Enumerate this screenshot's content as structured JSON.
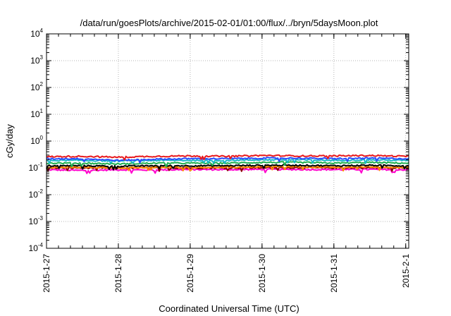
{
  "chart_data": {
    "type": "line",
    "title": "/data/run/goesPlots/archive/2015-02-01/01:00/flux/../bryn/5daysMoon.plot",
    "xlabel": "Coordinated Universal Time (UTC)",
    "ylabel": "cGy/day",
    "yscale": "log",
    "ylim": [
      0.0001,
      10000
    ],
    "xlim": [
      "2015-01-27",
      "2015-02-01 01:00"
    ],
    "grid": true,
    "legend": "none",
    "x_ticks": [
      "2015-1-27",
      "2015-1-28",
      "2015-1-29",
      "2015-1-30",
      "2015-1-31",
      "2015-2-1"
    ],
    "y_ticks": [
      {
        "base": "10",
        "exp": "-4"
      },
      {
        "base": "10",
        "exp": "-3"
      },
      {
        "base": "10",
        "exp": "-2"
      },
      {
        "base": "10",
        "exp": "-1"
      },
      {
        "base": "10",
        "exp": "0"
      },
      {
        "base": "10",
        "exp": "1"
      },
      {
        "base": "10",
        "exp": "2"
      },
      {
        "base": "10",
        "exp": "3"
      },
      {
        "base": "10",
        "exp": "4"
      }
    ],
    "series_x": [
      "2015-01-27",
      "2015-01-27 12:00",
      "2015-01-28",
      "2015-01-28 12:00",
      "2015-01-29",
      "2015-01-29 12:00",
      "2015-01-30",
      "2015-01-30 12:00",
      "2015-01-31",
      "2015-01-31 12:00",
      "2015-02-01",
      "2015-02-01 01:00"
    ],
    "series": [
      {
        "color": "#e8191c",
        "values": [
          0.26,
          0.27,
          0.25,
          0.27,
          0.28,
          0.27,
          0.29,
          0.28,
          0.28,
          0.29,
          0.27,
          0.27
        ]
      },
      {
        "color": "#2a4bff",
        "values": [
          0.22,
          0.22,
          0.19,
          0.21,
          0.22,
          0.22,
          0.23,
          0.23,
          0.22,
          0.23,
          0.22,
          0.22
        ]
      },
      {
        "color": "#1ab8c8",
        "values": [
          0.19,
          0.19,
          0.18,
          0.19,
          0.19,
          0.19,
          0.2,
          0.2,
          0.19,
          0.2,
          0.19,
          0.19
        ]
      },
      {
        "color": "#20b050",
        "values": [
          0.15,
          0.15,
          0.14,
          0.15,
          0.15,
          0.15,
          0.16,
          0.16,
          0.15,
          0.16,
          0.15,
          0.15
        ]
      },
      {
        "color": "#000000",
        "values": [
          0.12,
          0.12,
          0.115,
          0.12,
          0.12,
          0.12,
          0.125,
          0.125,
          0.12,
          0.125,
          0.12,
          0.12
        ]
      },
      {
        "color": "#ff8c00",
        "values": [
          0.105,
          0.105,
          0.1,
          0.105,
          0.105,
          0.105,
          0.11,
          0.11,
          0.105,
          0.11,
          0.105,
          0.105
        ]
      },
      {
        "color": "#8b0000",
        "values": [
          0.1,
          0.1,
          0.098,
          0.1,
          0.1,
          0.1,
          0.102,
          0.102,
          0.1,
          0.102,
          0.1,
          0.1
        ]
      },
      {
        "color": "#ff00cc",
        "values": [
          0.085,
          0.08,
          0.085,
          0.083,
          0.087,
          0.086,
          0.088,
          0.087,
          0.086,
          0.088,
          0.085,
          0.085
        ]
      }
    ]
  }
}
